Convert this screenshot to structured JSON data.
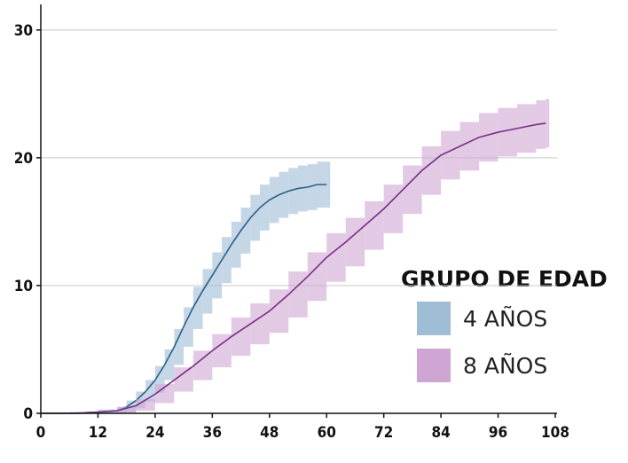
{
  "chart_data": {
    "type": "line",
    "xlim": [
      0,
      108
    ],
    "ylim": [
      0,
      32
    ],
    "xticks": [
      0,
      12,
      24,
      36,
      48,
      60,
      72,
      84,
      96,
      108
    ],
    "yticks": [
      0,
      10,
      20,
      30
    ],
    "grid": true,
    "legend_title": "GRUPO DE EDAD",
    "legend_position": "right",
    "series": [
      {
        "name": "4 AÑOS",
        "color": "#2b5f87",
        "band_color": "#9fbdd5",
        "x": [
          0,
          6,
          12,
          16,
          18,
          20,
          22,
          24,
          26,
          28,
          30,
          32,
          34,
          36,
          38,
          40,
          42,
          44,
          46,
          48,
          50,
          52,
          54,
          56,
          58,
          60
        ],
        "values": [
          0,
          0,
          0.1,
          0.2,
          0.5,
          1.0,
          1.7,
          2.6,
          3.8,
          5.2,
          6.8,
          8.3,
          9.6,
          10.8,
          12.0,
          13.2,
          14.3,
          15.3,
          16.1,
          16.7,
          17.1,
          17.4,
          17.6,
          17.7,
          17.9,
          17.9
        ],
        "lower": [
          0,
          0,
          0,
          0,
          0.1,
          0.4,
          0.9,
          1.6,
          2.6,
          3.8,
          5.2,
          6.6,
          7.8,
          9.0,
          10.2,
          11.4,
          12.5,
          13.5,
          14.3,
          14.9,
          15.3,
          15.6,
          15.8,
          15.9,
          16.1,
          16.1
        ],
        "upper": [
          0,
          0.1,
          0.3,
          0.5,
          1.0,
          1.7,
          2.6,
          3.7,
          5.0,
          6.6,
          8.3,
          9.9,
          11.3,
          12.6,
          13.8,
          15.0,
          16.1,
          17.1,
          17.9,
          18.5,
          18.9,
          19.2,
          19.4,
          19.5,
          19.7,
          19.7
        ]
      },
      {
        "name": "8 AÑOS",
        "color": "#7a2f86",
        "band_color": "#cfa6d3",
        "x": [
          0,
          4,
          8,
          12,
          16,
          20,
          24,
          28,
          32,
          36,
          40,
          44,
          48,
          52,
          56,
          60,
          64,
          68,
          72,
          76,
          80,
          84,
          88,
          92,
          96,
          100,
          104,
          106
        ],
        "values": [
          0,
          0,
          0,
          0.1,
          0.2,
          0.6,
          1.5,
          2.6,
          3.7,
          4.9,
          6.0,
          7.0,
          8.0,
          9.3,
          10.7,
          12.2,
          13.4,
          14.7,
          16.0,
          17.5,
          19.0,
          20.2,
          20.9,
          21.6,
          22.0,
          22.3,
          22.6,
          22.7
        ],
        "lower": [
          0,
          0,
          0,
          0,
          0,
          0.2,
          0.8,
          1.7,
          2.6,
          3.6,
          4.5,
          5.4,
          6.3,
          7.5,
          8.8,
          10.3,
          11.5,
          12.8,
          14.1,
          15.6,
          17.1,
          18.3,
          19.0,
          19.7,
          20.1,
          20.4,
          20.7,
          20.8
        ],
        "upper": [
          0,
          0,
          0.1,
          0.2,
          0.5,
          1.1,
          2.3,
          3.6,
          4.9,
          6.2,
          7.5,
          8.6,
          9.7,
          11.1,
          12.6,
          14.1,
          15.3,
          16.6,
          17.9,
          19.4,
          20.9,
          22.1,
          22.8,
          23.5,
          23.9,
          24.2,
          24.5,
          24.6
        ]
      }
    ]
  }
}
